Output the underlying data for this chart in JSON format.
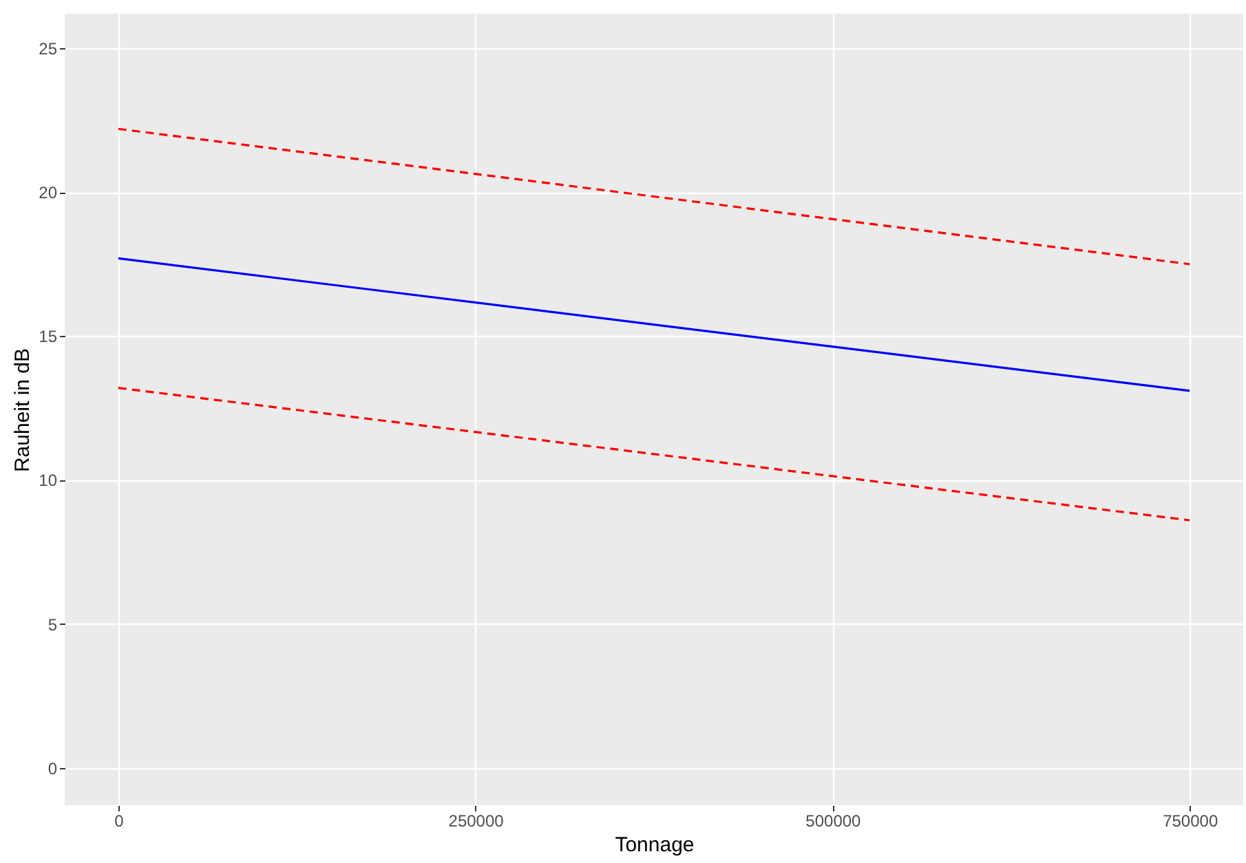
{
  "chart_data": {
    "type": "line",
    "xlabel": "Tonnage",
    "ylabel": "Rauheit in dB",
    "x": [
      0,
      750000
    ],
    "series": [
      {
        "color": "#ff0000",
        "values": [
          22.2,
          17.5
        ],
        "line_style": "dashed"
      },
      {
        "color": "#0000ff",
        "values": [
          17.7,
          13.1
        ],
        "line_style": "solid"
      },
      {
        "color": "#ff0000",
        "values": [
          13.2,
          8.6
        ],
        "line_style": "dashed"
      }
    ],
    "xlim": [
      -37500,
      787500
    ],
    "ylim": [
      -1.3,
      26.2
    ],
    "xticks": [
      0,
      250000,
      500000,
      750000
    ],
    "yticks": [
      0,
      5,
      10,
      15,
      20,
      25
    ],
    "grid": true,
    "marker": "none"
  }
}
